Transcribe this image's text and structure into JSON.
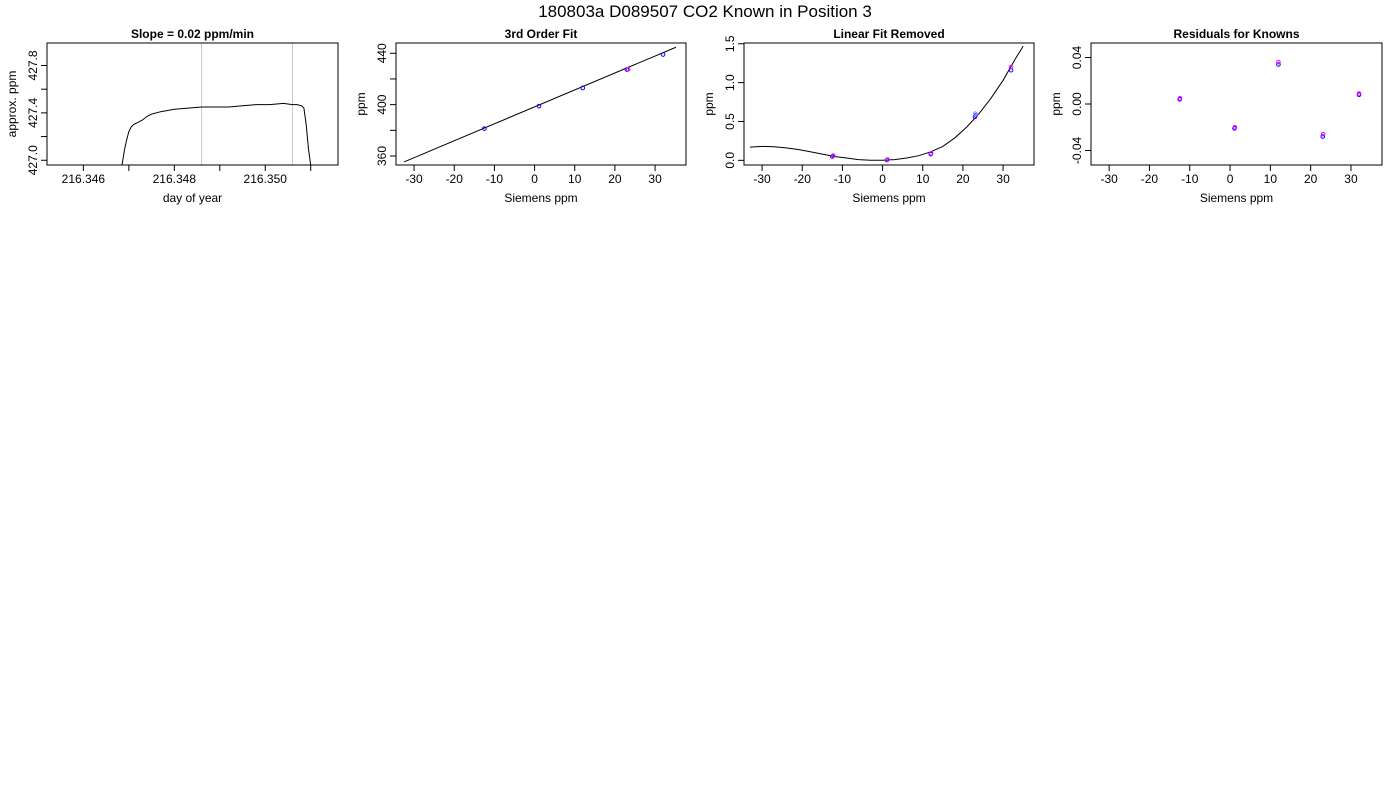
{
  "page_title": "180803a     D089507   CO2 Known in Position  3",
  "chart_data": [
    {
      "type": "line",
      "title": "Slope =  0.02  ppm/min",
      "xlabel": "day of year",
      "ylabel": "approx. ppm",
      "xlim": [
        216.3452,
        216.3516
      ],
      "ylim": [
        426.96,
        427.99
      ],
      "xticks": [
        "216.346",
        "216.348",
        "216.350"
      ],
      "xtick_values": [
        216.346,
        216.348,
        216.35
      ],
      "yticks": [
        "427.0",
        "427.4",
        "427.8"
      ],
      "ytick_values": [
        427.0,
        427.4,
        427.8
      ],
      "vlines": [
        216.3486,
        216.3506
      ],
      "series": [
        {
          "color": "#000000",
          "x": [
            216.34685,
            216.3469,
            216.34695,
            216.347,
            216.34705,
            216.3471,
            216.3472,
            216.3473,
            216.3474,
            216.3475,
            216.3477,
            216.348,
            216.3483,
            216.3486,
            216.3489,
            216.3492,
            216.3495,
            216.3498,
            216.3501,
            216.3504,
            216.3506,
            216.3507,
            216.3508,
            216.35085,
            216.3509,
            216.35095,
            216.351
          ],
          "y": [
            426.96,
            427.08,
            427.17,
            427.24,
            427.28,
            427.3,
            427.32,
            427.34,
            427.37,
            427.39,
            427.41,
            427.43,
            427.44,
            427.45,
            427.45,
            427.45,
            427.46,
            427.47,
            427.47,
            427.48,
            427.47,
            427.47,
            427.46,
            427.44,
            427.3,
            427.1,
            426.96
          ]
        }
      ]
    },
    {
      "type": "scatter",
      "title": "3rd Order Fit",
      "xlabel": "Siemens ppm",
      "ylabel": "ppm",
      "xlim": [
        -34.5,
        37.7
      ],
      "ylim": [
        353,
        448
      ],
      "xticks": [
        "-30",
        "-20",
        "-10",
        "0",
        "10",
        "20",
        "30"
      ],
      "xtick_values": [
        -30,
        -20,
        -10,
        0,
        10,
        20,
        30
      ],
      "yticks": [
        "360",
        "400",
        "440"
      ],
      "ytick_values": [
        360,
        400,
        440
      ],
      "fit_line": {
        "x": [
          -32.5,
          35.2
        ],
        "y": [
          355.4,
          444.7
        ]
      },
      "series": [
        {
          "color": "#0000ff",
          "x": [
            -12.5,
            1.1,
            12.0,
            23.0,
            32.0
          ],
          "y": [
            381.3,
            398.8,
            413.0,
            427.3,
            439.0
          ]
        },
        {
          "color": "#ff00ff",
          "x": [
            23.3
          ],
          "y": [
            427.6
          ]
        }
      ]
    },
    {
      "type": "scatter",
      "title": "Linear Fit Removed",
      "xlabel": "Siemens ppm",
      "ylabel": "ppm",
      "xlim": [
        -34.5,
        37.7
      ],
      "ylim": [
        -0.06,
        1.51
      ],
      "xticks": [
        "-30",
        "-20",
        "-10",
        "0",
        "10",
        "20",
        "30"
      ],
      "xtick_values": [
        -30,
        -20,
        -10,
        0,
        10,
        20,
        30
      ],
      "yticks": [
        "0.0",
        "0.5",
        "1.0",
        "1.5"
      ],
      "ytick_values": [
        0.0,
        0.5,
        1.0,
        1.5
      ],
      "fit_curve": {
        "x": [
          -33,
          -30,
          -27,
          -24,
          -21,
          -18,
          -15,
          -12,
          -9,
          -6,
          -3,
          0,
          3,
          6,
          9,
          12,
          15,
          18,
          21,
          24,
          27,
          30,
          33,
          35
        ],
        "y": [
          0.17,
          0.18,
          0.175,
          0.16,
          0.14,
          0.11,
          0.08,
          0.05,
          0.03,
          0.01,
          0.0,
          0.0,
          0.01,
          0.03,
          0.06,
          0.11,
          0.18,
          0.29,
          0.43,
          0.6,
          0.8,
          1.03,
          1.3,
          1.47
        ]
      },
      "series": [
        {
          "color": "#0000ff",
          "x": [
            -12.5,
            1.1,
            12.0,
            23.0,
            32.0
          ],
          "y": [
            0.05,
            0.005,
            0.08,
            0.56,
            1.16
          ]
        },
        {
          "color": "#ff00ff",
          "x": [
            -12.3,
            1.2,
            12.1,
            23.2,
            32.0
          ],
          "y": [
            0.06,
            0.01,
            0.09,
            0.58,
            1.2
          ]
        },
        {
          "color": "#00bfff",
          "x": [
            23.1
          ],
          "y": [
            0.6
          ]
        }
      ]
    },
    {
      "type": "scatter",
      "title": "Residuals for Knowns",
      "xlabel": "Siemens ppm",
      "ylabel": "ppm",
      "xlim": [
        -34.5,
        37.7
      ],
      "ylim": [
        -0.0525,
        0.0525
      ],
      "xticks": [
        "-30",
        "-20",
        "-10",
        "0",
        "10",
        "20",
        "30"
      ],
      "xtick_values": [
        -30,
        -20,
        -10,
        0,
        10,
        20,
        30
      ],
      "yticks": [
        "-0.04",
        "0.00",
        "0.04"
      ],
      "ytick_values": [
        -0.04,
        0.0,
        0.04
      ],
      "series": [
        {
          "color": "#0000ff",
          "x": [
            -12.5,
            1.1,
            12.0,
            23.0,
            32.0
          ],
          "y": [
            0.004,
            -0.021,
            0.034,
            -0.028,
            0.008
          ]
        },
        {
          "color": "#ff00ff",
          "x": [
            -12.4,
            1.2,
            12.0,
            23.1,
            32.0
          ],
          "y": [
            0.005,
            -0.02,
            0.036,
            -0.026,
            0.009
          ]
        }
      ]
    }
  ]
}
